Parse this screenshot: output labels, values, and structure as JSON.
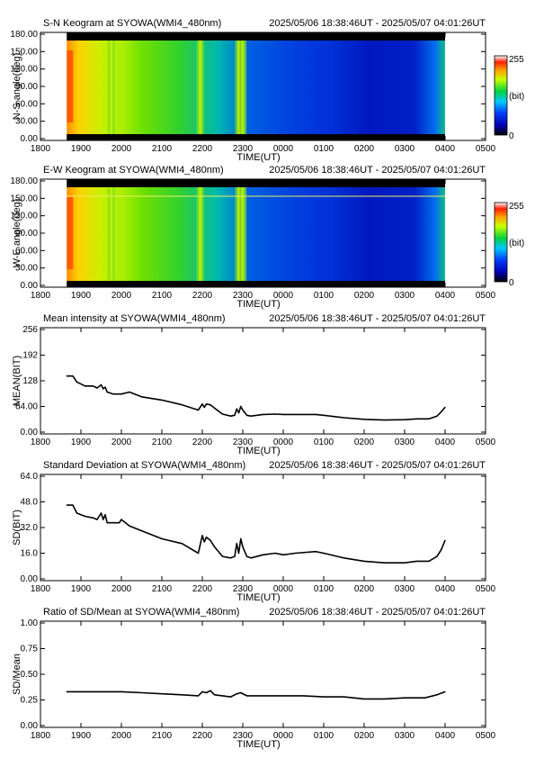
{
  "time_ticks": [
    "1800",
    "1900",
    "2000",
    "2100",
    "2200",
    "2300",
    "0000",
    "0100",
    "0200",
    "0300",
    "0400",
    "0500"
  ],
  "xlabel": "TIME(UT)",
  "time_range": "2025/05/06 18:38:46UT - 2025/05/07 04:01:26UT",
  "colors": {
    "line": "#000000",
    "background": "#ffffff",
    "band": "#000000"
  },
  "keograms": [
    {
      "title": "S-N Keogram at SYOWA(WMI4_480nm)",
      "ylabel": "N-S angle(deg)",
      "yticks": [
        "0.00",
        "30.00",
        "60.00",
        "90.00",
        "120.00",
        "150.00",
        "180.00"
      ],
      "colorbar": {
        "max": "255",
        "unit": "(bit)",
        "min": "0"
      },
      "bright_bands_utc": [
        19.75,
        21.95,
        22.9,
        23.0
      ]
    },
    {
      "title": "E-W Keogram at SYOWA(WMI4_480nm)",
      "ylabel": "W-E angle(deg)",
      "yticks": [
        "0.00",
        "30.00",
        "60.00",
        "90.00",
        "120.00",
        "150.00",
        "180.00"
      ],
      "colorbar": {
        "max": "255",
        "unit": "(bit)",
        "min": "0"
      },
      "bright_bands_utc": [
        19.75,
        21.95,
        22.9,
        23.0
      ]
    }
  ],
  "chart_data": [
    {
      "type": "line",
      "title": "Mean intensity at SYOWA(WMI4_480nm)",
      "ylabel": "MEAN(BIT)",
      "xlabel": "TIME(UT)",
      "yticks": [
        "0.00",
        "64.00",
        "128",
        "192",
        "256"
      ],
      "ylim": [
        0,
        256
      ],
      "xlim": [
        18.0,
        29.0
      ],
      "x": [
        18.65,
        18.8,
        18.9,
        19.1,
        19.3,
        19.4,
        19.5,
        19.55,
        19.6,
        19.65,
        19.8,
        19.95,
        20.0,
        20.2,
        20.5,
        21.0,
        21.5,
        21.9,
        22.0,
        22.05,
        22.1,
        22.2,
        22.3,
        22.5,
        22.7,
        22.8,
        22.85,
        22.9,
        22.95,
        23.0,
        23.1,
        23.2,
        23.5,
        23.8,
        24.0,
        24.3,
        24.8,
        25.0,
        25.5,
        26.0,
        26.5,
        27.0,
        27.3,
        27.6,
        27.8,
        27.9,
        28.0
      ],
      "values": [
        140,
        140,
        125,
        115,
        115,
        110,
        118,
        108,
        112,
        100,
        95,
        95,
        95,
        100,
        88,
        80,
        68,
        55,
        70,
        62,
        70,
        68,
        60,
        45,
        40,
        42,
        58,
        48,
        64,
        55,
        42,
        40,
        44,
        45,
        44,
        44,
        44,
        42,
        36,
        32,
        30,
        31,
        33,
        33,
        40,
        50,
        62
      ]
    },
    {
      "type": "line",
      "title": "Standard Deviation at SYOWA(WMI4_480nm)",
      "ylabel": "SD(BIT)",
      "xlabel": "TIME(UT)",
      "yticks": [
        "0.00",
        "16.0",
        "32.0",
        "48.0",
        "64.0"
      ],
      "ylim": [
        0,
        64
      ],
      "xlim": [
        18.0,
        29.0
      ],
      "x": [
        18.65,
        18.8,
        18.9,
        19.1,
        19.3,
        19.4,
        19.5,
        19.55,
        19.6,
        19.65,
        19.8,
        19.95,
        20.0,
        20.2,
        20.5,
        21.0,
        21.5,
        21.9,
        22.0,
        22.05,
        22.1,
        22.2,
        22.3,
        22.5,
        22.7,
        22.8,
        22.85,
        22.9,
        22.95,
        23.0,
        23.1,
        23.2,
        23.5,
        23.8,
        24.0,
        24.3,
        24.8,
        25.0,
        25.5,
        26.0,
        26.5,
        27.0,
        27.3,
        27.6,
        27.8,
        27.9,
        28.0
      ],
      "values": [
        46,
        46,
        41,
        39,
        38,
        37,
        41,
        37,
        40,
        35,
        35,
        35,
        37,
        33,
        30,
        25,
        22,
        16,
        27,
        23,
        26,
        24,
        20,
        14,
        13,
        14,
        22,
        16,
        25,
        20,
        14,
        13,
        15,
        16,
        15,
        16,
        17,
        16,
        13,
        11,
        10,
        10,
        11,
        11,
        14,
        18,
        24
      ]
    },
    {
      "type": "line",
      "title": "Ratio of SD/Mean at SYOWA(WMI4_480nm)",
      "ylabel": "SD/Mean",
      "xlabel": "TIME(UT)",
      "yticks": [
        "0.00",
        "0.25",
        "0.50",
        "0.75",
        "1.00"
      ],
      "ylim": [
        0,
        1.0
      ],
      "xlim": [
        18.0,
        29.0
      ],
      "x": [
        18.65,
        19.0,
        19.5,
        20.0,
        20.5,
        21.0,
        21.5,
        21.9,
        22.0,
        22.1,
        22.2,
        22.3,
        22.5,
        22.7,
        22.85,
        22.95,
        23.1,
        23.5,
        24.0,
        24.5,
        25.0,
        25.5,
        26.0,
        26.5,
        27.0,
        27.5,
        27.8,
        28.0
      ],
      "values": [
        0.33,
        0.33,
        0.33,
        0.33,
        0.32,
        0.31,
        0.3,
        0.29,
        0.33,
        0.32,
        0.34,
        0.3,
        0.29,
        0.28,
        0.31,
        0.32,
        0.29,
        0.29,
        0.29,
        0.29,
        0.28,
        0.28,
        0.26,
        0.26,
        0.27,
        0.27,
        0.3,
        0.33
      ]
    }
  ]
}
